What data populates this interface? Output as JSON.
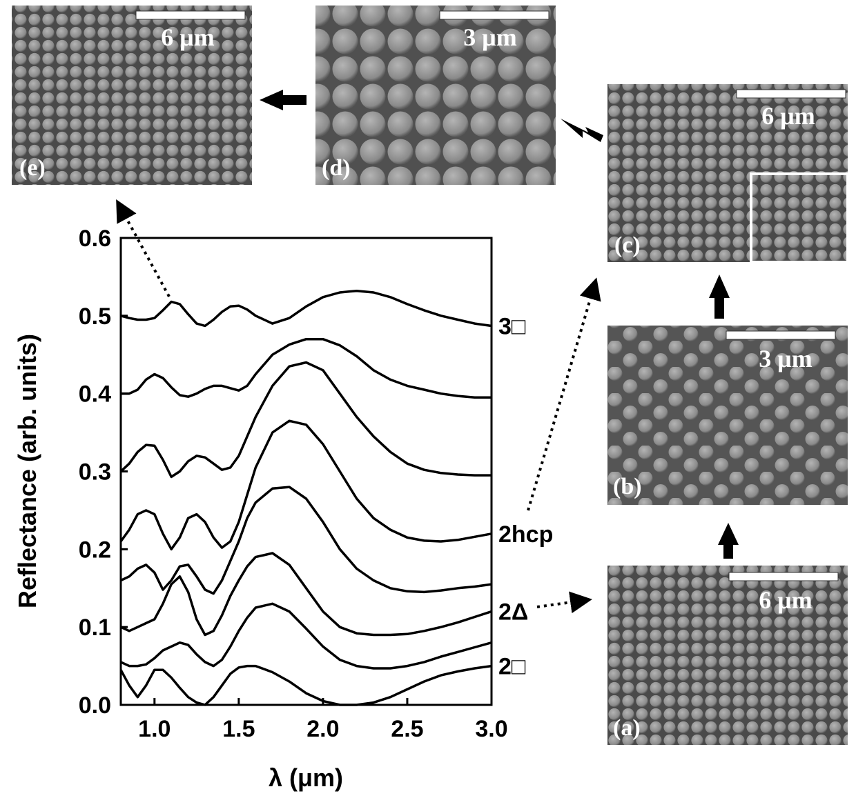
{
  "chart_data": {
    "type": "line",
    "x_label": "λ (μm)",
    "y_label": "Reflectance (arb. units)",
    "xlim": [
      0.8,
      3.0
    ],
    "ylim": [
      0.0,
      0.6
    ],
    "xticks": [
      {
        "value": 1,
        "label": "1.0"
      },
      {
        "value": 1.5,
        "label": "1.5"
      },
      {
        "value": 2,
        "label": "2.0"
      },
      {
        "value": 2.5,
        "label": "2.5"
      },
      {
        "value": 3,
        "label": "3.0"
      }
    ],
    "yticks": [
      {
        "value": 0,
        "label": "0.0"
      },
      0.1,
      0.2,
      0.3,
      0.4,
      0.5,
      0.6
    ],
    "x": [
      0.8,
      0.85,
      0.9,
      0.95,
      1.0,
      1.05,
      1.1,
      1.15,
      1.2,
      1.25,
      1.3,
      1.35,
      1.4,
      1.45,
      1.5,
      1.55,
      1.6,
      1.7,
      1.8,
      1.9,
      2.0,
      2.1,
      2.2,
      2.3,
      2.4,
      2.5,
      2.6,
      2.7,
      2.8,
      2.9,
      3.0
    ],
    "series": [
      {
        "name": "3□",
        "color": "#000000",
        "values": [
          0.5,
          0.497,
          0.495,
          0.495,
          0.497,
          0.507,
          0.518,
          0.515,
          0.502,
          0.49,
          0.487,
          0.495,
          0.505,
          0.512,
          0.513,
          0.508,
          0.5,
          0.49,
          0.497,
          0.512,
          0.524,
          0.53,
          0.532,
          0.53,
          0.524,
          0.515,
          0.507,
          0.5,
          0.495,
          0.49,
          0.487
        ]
      },
      {
        "color": "#000000",
        "values": [
          0.4,
          0.4,
          0.405,
          0.418,
          0.425,
          0.42,
          0.408,
          0.398,
          0.396,
          0.4,
          0.406,
          0.41,
          0.41,
          0.407,
          0.404,
          0.41,
          0.425,
          0.45,
          0.463,
          0.47,
          0.47,
          0.462,
          0.448,
          0.43,
          0.418,
          0.41,
          0.405,
          0.4,
          0.397,
          0.395,
          0.395
        ]
      },
      {
        "color": "#000000",
        "values": [
          0.3,
          0.31,
          0.325,
          0.334,
          0.333,
          0.315,
          0.293,
          0.3,
          0.313,
          0.32,
          0.318,
          0.31,
          0.302,
          0.305,
          0.32,
          0.345,
          0.37,
          0.41,
          0.435,
          0.44,
          0.43,
          0.4,
          0.37,
          0.345,
          0.325,
          0.31,
          0.302,
          0.298,
          0.296,
          0.295,
          0.295
        ]
      },
      {
        "name": "2hcp",
        "color": "#000000",
        "values": [
          0.21,
          0.225,
          0.245,
          0.25,
          0.245,
          0.22,
          0.2,
          0.215,
          0.24,
          0.245,
          0.235,
          0.215,
          0.202,
          0.21,
          0.235,
          0.27,
          0.305,
          0.35,
          0.365,
          0.36,
          0.335,
          0.3,
          0.265,
          0.24,
          0.225,
          0.215,
          0.211,
          0.21,
          0.212,
          0.216,
          0.22
        ]
      },
      {
        "color": "#000000",
        "values": [
          0.16,
          0.165,
          0.175,
          0.18,
          0.17,
          0.148,
          0.16,
          0.178,
          0.18,
          0.165,
          0.148,
          0.143,
          0.16,
          0.185,
          0.21,
          0.24,
          0.26,
          0.278,
          0.28,
          0.265,
          0.235,
          0.2,
          0.175,
          0.16,
          0.15,
          0.146,
          0.145,
          0.147,
          0.15,
          0.152,
          0.155
        ]
      },
      {
        "name": "2Δ",
        "color": "#000000",
        "values": [
          0.1,
          0.095,
          0.1,
          0.105,
          0.11,
          0.13,
          0.155,
          0.165,
          0.145,
          0.11,
          0.09,
          0.095,
          0.115,
          0.14,
          0.16,
          0.178,
          0.19,
          0.195,
          0.18,
          0.15,
          0.12,
          0.1,
          0.092,
          0.09,
          0.09,
          0.091,
          0.095,
          0.1,
          0.106,
          0.113,
          0.12
        ]
      },
      {
        "color": "#000000",
        "values": [
          0.055,
          0.05,
          0.05,
          0.052,
          0.06,
          0.07,
          0.075,
          0.08,
          0.077,
          0.065,
          0.055,
          0.05,
          0.058,
          0.075,
          0.095,
          0.112,
          0.125,
          0.13,
          0.12,
          0.098,
          0.075,
          0.058,
          0.05,
          0.047,
          0.047,
          0.05,
          0.055,
          0.062,
          0.068,
          0.074,
          0.08
        ]
      },
      {
        "name": "2□",
        "color": "#000000",
        "values": [
          0.045,
          0.025,
          0.01,
          0.025,
          0.045,
          0.045,
          0.035,
          0.022,
          0.01,
          0.003,
          0.0,
          0.01,
          0.025,
          0.04,
          0.048,
          0.05,
          0.05,
          0.042,
          0.03,
          0.015,
          0.005,
          0.0,
          0.0,
          0.003,
          0.01,
          0.02,
          0.03,
          0.038,
          0.043,
          0.047,
          0.05
        ]
      }
    ]
  },
  "panels": [
    {
      "label": "(a)",
      "scale_bar": "6 μm"
    },
    {
      "label": "(b)",
      "scale_bar": "3 μm"
    },
    {
      "label": "(c)",
      "scale_bar": "6 μm"
    },
    {
      "label": "(d)",
      "scale_bar": "3 μm"
    },
    {
      "label": "(e)",
      "scale_bar": "6 μm"
    }
  ]
}
